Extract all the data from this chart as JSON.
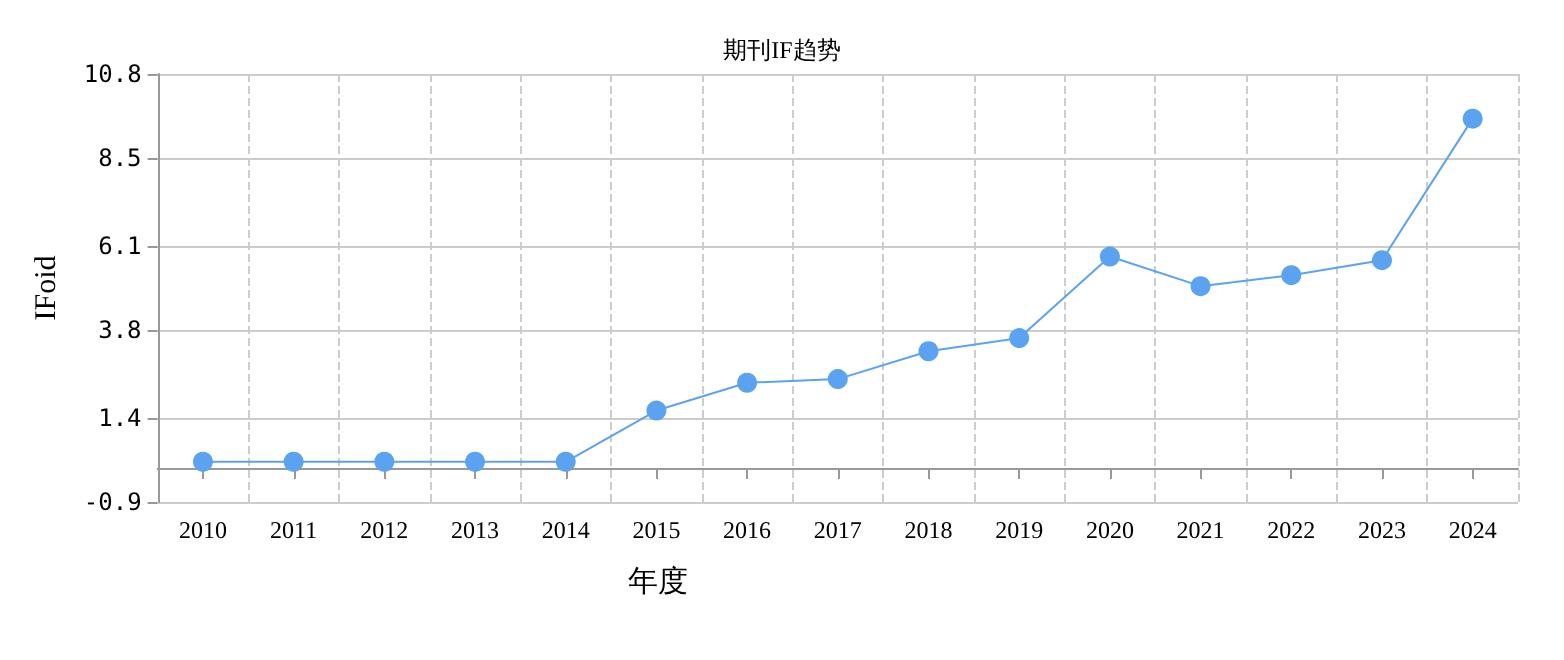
{
  "chart_data": {
    "type": "line",
    "title": "期刊IF趋势",
    "xlabel": "年度",
    "ylabel": "IFoid",
    "categories": [
      "2010",
      "2011",
      "2012",
      "2013",
      "2014",
      "2015",
      "2016",
      "2017",
      "2018",
      "2019",
      "2020",
      "2021",
      "2022",
      "2023",
      "2024"
    ],
    "series": [
      {
        "color": "#5ba3f0",
        "values": [
          0.2,
          0.2,
          0.2,
          0.2,
          0.2,
          1.6,
          2.36,
          2.46,
          3.22,
          3.58,
          5.81,
          5.0,
          5.3,
          5.71,
          9.58
        ]
      }
    ],
    "ylim": [
      -0.9,
      10.8
    ],
    "yticks": [
      -0.9,
      1.4,
      3.8,
      6.1,
      8.5,
      10.8
    ],
    "grid": true,
    "marker": "circle",
    "line_style": "solid"
  }
}
